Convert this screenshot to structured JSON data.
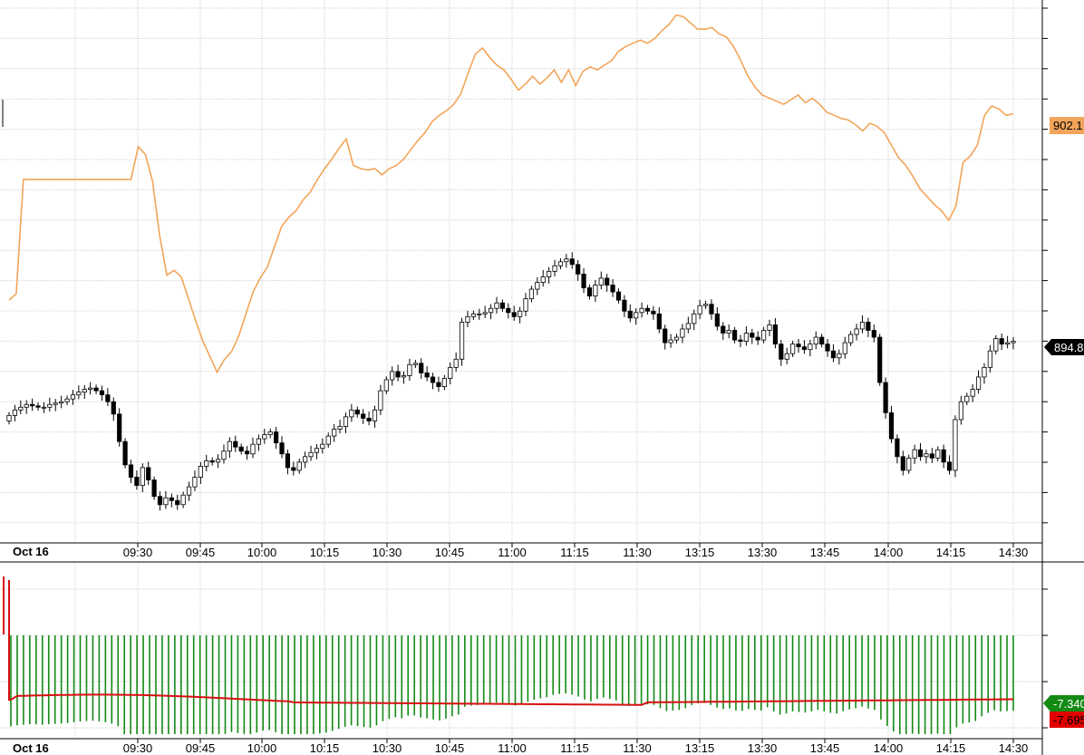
{
  "colors": {
    "grid": "#d2d2d2",
    "axis": "#000000",
    "candle": "#000000",
    "overlay_line": "#f2a55a",
    "histogram": "#138a13",
    "signal_line": "#d81010",
    "label_orange": "#f2a55a",
    "label_green": "#138a13",
    "label_red": "#e00000",
    "label_black": "#000000"
  },
  "chart_data": [
    {
      "type": "candlestick",
      "title": "",
      "date_label": "Oct 16",
      "x_tick_labels": [
        "09:30",
        "09:45",
        "10:00",
        "10:15",
        "10:30",
        "10:45",
        "11:00",
        "11:15",
        "11:30",
        "13:15",
        "13:30",
        "13:45",
        "14:00",
        "14:15",
        "14:30"
      ],
      "price_label": "894.8",
      "grid": true,
      "close_series": [
        884.4,
        884.8,
        885.0,
        885.2,
        885.1,
        885.0,
        885.0,
        885.2,
        885.3,
        885.4,
        885.6,
        885.9,
        886.1,
        886.3,
        886.4,
        886.2,
        885.9,
        885.4,
        884.5,
        882.5,
        880.8,
        879.9,
        879.3,
        880.6,
        879.7,
        878.5,
        877.9,
        878.4,
        878.2,
        877.9,
        878.6,
        879.2,
        879.9,
        880.7,
        881.1,
        881.0,
        881.2,
        881.8,
        882.5,
        882.1,
        881.8,
        881.6,
        882.3,
        882.7,
        883.0,
        883.2,
        882.4,
        881.6,
        880.6,
        880.4,
        881.0,
        881.4,
        881.7,
        882.0,
        882.3,
        882.9,
        883.4,
        883.6,
        884.3,
        884.8,
        884.5,
        884.2,
        884.0,
        884.8,
        886.2,
        887.0,
        887.6,
        887.2,
        887.3,
        888.1,
        888.2,
        887.5,
        887.2,
        886.8,
        886.5,
        887.1,
        887.9,
        888.5,
        891.2,
        891.6,
        891.8,
        891.8,
        891.9,
        892.2,
        892.6,
        892.2,
        891.9,
        891.6,
        892.0,
        892.9,
        893.6,
        894.1,
        894.5,
        894.9,
        895.3,
        895.6,
        895.8,
        895.4,
        894.7,
        893.7,
        893.1,
        893.9,
        894.4,
        893.9,
        893.4,
        892.8,
        892.0,
        891.5,
        891.9,
        892.2,
        892.0,
        891.8,
        890.7,
        889.7,
        889.9,
        890.1,
        890.7,
        891.1,
        891.8,
        892.4,
        892.5,
        891.8,
        890.9,
        890.4,
        890.6,
        889.9,
        889.8,
        890.4,
        890.1,
        889.9,
        890.6,
        891.0,
        889.6,
        888.5,
        888.9,
        889.6,
        889.4,
        889.2,
        889.6,
        890.1,
        889.6,
        889.1,
        888.6,
        888.9,
        889.7,
        890.3,
        890.7,
        891.2,
        890.6,
        890.1,
        886.8,
        884.6,
        882.7,
        881.4,
        880.4,
        881.3,
        881.9,
        881.4,
        881.6,
        881.3,
        881.9,
        881.0,
        880.4,
        884.1,
        885.4,
        885.8,
        886.3,
        887.2,
        887.9,
        889.1,
        890.0,
        889.6,
        889.7,
        889.8
      ]
    },
    {
      "type": "line",
      "series_name": "",
      "value_label": "902.1",
      "values": [
        890.3,
        890.7,
        898.0,
        898.0,
        898.0,
        898.0,
        898.0,
        898.0,
        898.0,
        898.0,
        898.0,
        898.0,
        898.0,
        898.0,
        898.0,
        898.0,
        898.0,
        898.0,
        900.1,
        899.6,
        897.9,
        894.4,
        891.9,
        892.2,
        891.8,
        890.4,
        889.0,
        887.7,
        886.7,
        885.7,
        886.5,
        887.0,
        888.0,
        889.4,
        890.8,
        891.7,
        892.4,
        893.7,
        895.0,
        895.6,
        896.0,
        896.7,
        897.2,
        898.0,
        898.7,
        899.3,
        900.0,
        900.6,
        898.9,
        898.7,
        898.6,
        898.7,
        898.3,
        898.7,
        898.9,
        899.3,
        899.9,
        900.5,
        901.0,
        901.7,
        902.1,
        902.4,
        902.8,
        903.5,
        904.8,
        906.0,
        906.4,
        905.8,
        905.3,
        905.0,
        904.4,
        903.7,
        904.1,
        904.6,
        904.1,
        904.5,
        905.0,
        904.2,
        905.0,
        904.0,
        904.9,
        905.2,
        905.0,
        905.3,
        905.6,
        906.2,
        906.5,
        906.7,
        906.9,
        906.7,
        907.0,
        907.5,
        907.9,
        908.5,
        908.4,
        908.0,
        907.6,
        907.6,
        907.7,
        907.3,
        907.1,
        906.5,
        905.6,
        904.6,
        903.9,
        903.4,
        903.2,
        903.0,
        902.8,
        903.1,
        903.4,
        902.9,
        903.2,
        902.8,
        902.3,
        902.1,
        901.9,
        901.8,
        901.5,
        901.1,
        901.6,
        901.4,
        901.0,
        900.2,
        899.4,
        898.9,
        898.2,
        897.4,
        896.9,
        896.4,
        896.0,
        895.4,
        896.3,
        899.1,
        899.5,
        900.2,
        902.1,
        902.7,
        902.5,
        902.1,
        902.2
      ]
    },
    {
      "type": "histogram",
      "label_green": "-7.340",
      "label_red": "-7.695",
      "grid": true,
      "x_tick_labels": [
        "Oct 16",
        "09:30",
        "09:45",
        "10:00",
        "10:15",
        "10:30",
        "10:45",
        "11:00",
        "11:15",
        "11:30",
        "13:15",
        "13:30",
        "13:45",
        "14:00",
        "14:15",
        "14:30"
      ]
    }
  ]
}
